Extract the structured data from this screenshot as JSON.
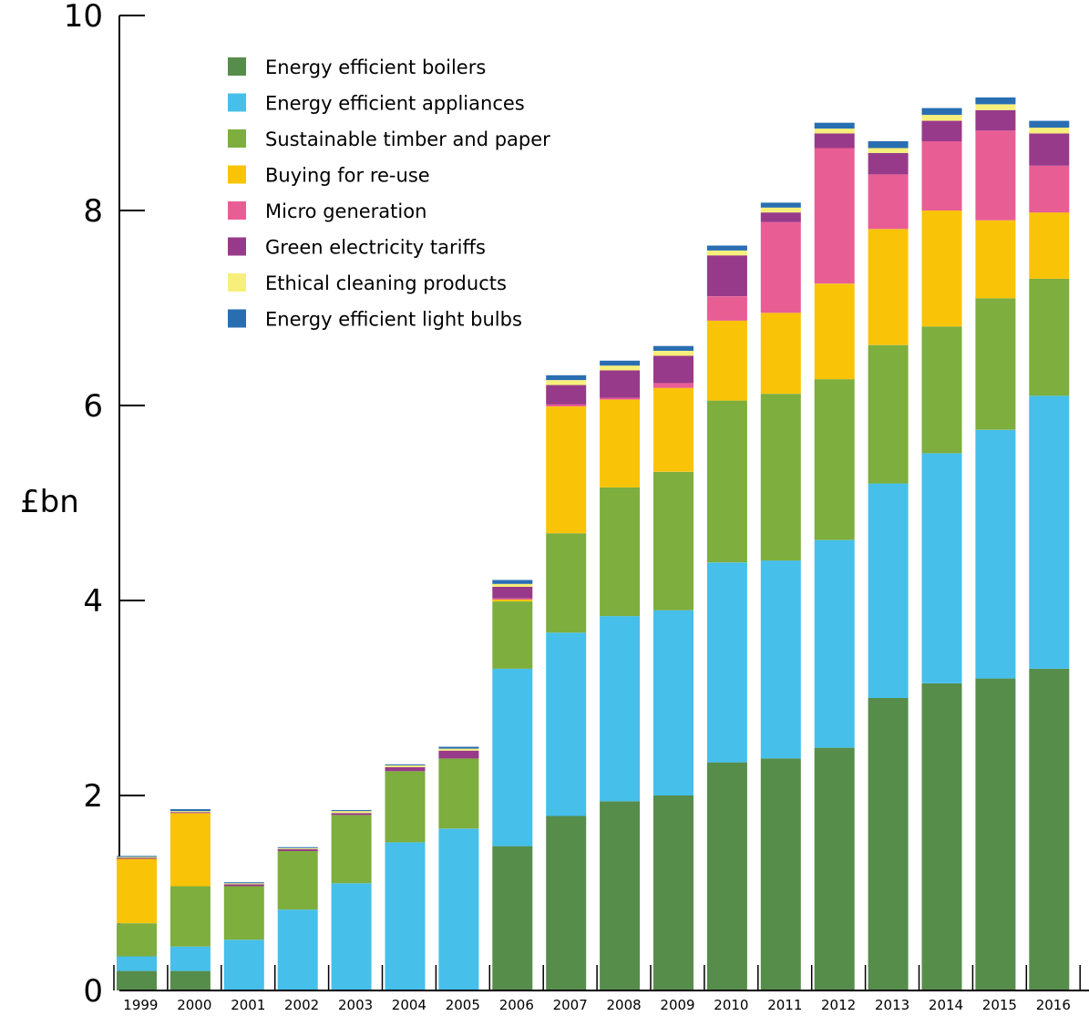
{
  "chart_data": {
    "type": "bar",
    "stacked": true,
    "ylabel": "£bn",
    "ylim": [
      0,
      10
    ],
    "yticks": [
      0,
      2,
      4,
      6,
      8,
      10
    ],
    "grid": false,
    "legend_position": "top-left",
    "categories": [
      "1999",
      "2000",
      "2001",
      "2002",
      "2003",
      "2004",
      "2005",
      "2006",
      "2007",
      "2008",
      "2009",
      "2010",
      "2011",
      "2012",
      "2013",
      "2014",
      "2015",
      "2016"
    ],
    "series": [
      {
        "name": "Energy efficient boilers",
        "color": "#568d4b",
        "values": [
          0.2,
          0.2,
          0,
          0,
          0,
          0,
          0,
          1.48,
          1.79,
          1.94,
          2.0,
          2.34,
          2.38,
          2.49,
          3.0,
          3.15,
          3.2,
          3.3
        ]
      },
      {
        "name": "Energy efficient appliances",
        "color": "#46bfeb",
        "values": [
          0.15,
          0.25,
          0.52,
          0.83,
          1.1,
          1.52,
          1.66,
          1.82,
          1.88,
          1.9,
          1.9,
          2.05,
          2.03,
          2.13,
          2.2,
          2.36,
          2.55,
          2.8
        ]
      },
      {
        "name": "Sustainable timber and paper",
        "color": "#7dae3e",
        "values": [
          0.34,
          0.62,
          0.55,
          0.6,
          0.7,
          0.73,
          0.72,
          0.69,
          1.02,
          1.32,
          1.42,
          1.66,
          1.71,
          1.65,
          1.42,
          1.3,
          1.35,
          1.2
        ]
      },
      {
        "name": "Buying for re-use",
        "color": "#f9c408",
        "values": [
          0.66,
          0.75,
          0,
          0,
          0,
          0,
          0,
          0.02,
          1.3,
          0.9,
          0.86,
          0.82,
          0.83,
          0.98,
          1.19,
          1.19,
          0.8,
          0.68
        ]
      },
      {
        "name": "Micro generation",
        "color": "#e95d95",
        "values": [
          0,
          0,
          0,
          0,
          0,
          0,
          0,
          0.01,
          0.02,
          0.02,
          0.05,
          0.25,
          0.93,
          1.39,
          0.56,
          0.71,
          0.92,
          0.48
        ]
      },
      {
        "name": "Green electricity tariffs",
        "color": "#983a8a",
        "values": [
          0.01,
          0.01,
          0.02,
          0.02,
          0.02,
          0.04,
          0.08,
          0.12,
          0.2,
          0.28,
          0.28,
          0.42,
          0.1,
          0.15,
          0.22,
          0.21,
          0.21,
          0.33
        ]
      },
      {
        "name": "Ethical cleaning products",
        "color": "#f7ef7b",
        "values": [
          0.01,
          0.01,
          0.01,
          0.01,
          0.02,
          0.02,
          0.02,
          0.03,
          0.05,
          0.05,
          0.05,
          0.05,
          0.05,
          0.05,
          0.05,
          0.06,
          0.06,
          0.06
        ]
      },
      {
        "name": "Energy efficient light bulbs",
        "color": "#2a6eb2",
        "values": [
          0.01,
          0.02,
          0.01,
          0.01,
          0.01,
          0.01,
          0.02,
          0.04,
          0.05,
          0.05,
          0.05,
          0.05,
          0.05,
          0.06,
          0.07,
          0.07,
          0.07,
          0.07
        ]
      }
    ]
  }
}
